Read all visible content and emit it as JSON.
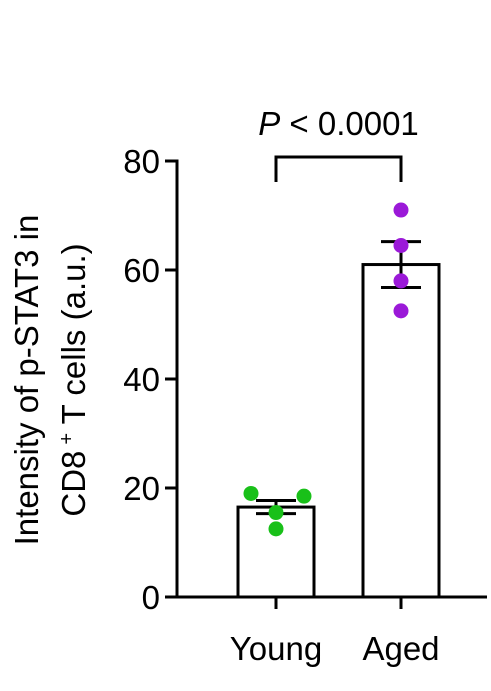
{
  "chart_data": {
    "type": "bar",
    "categories": [
      "Young",
      "Aged"
    ],
    "values": [
      16.5,
      61
    ],
    "sem": [
      1.2,
      4.2
    ],
    "points": [
      [
        19,
        18.5,
        15.5,
        12.5
      ],
      [
        71,
        64.5,
        58,
        52.5
      ]
    ],
    "point_colors": [
      "#19c019",
      "#9b19d8"
    ],
    "ylabel_line1": "Intensity of p-STAT3 in",
    "ylabel_line2_pre": "CD8",
    "ylabel_line2_sup": "+",
    "ylabel_line2_post": " T cells (a.u.)",
    "ylim": [
      0,
      80
    ],
    "yticks": [
      0,
      20,
      40,
      60,
      80
    ],
    "significance": {
      "italic": "P",
      "text": " < 0.0001"
    },
    "grid": false,
    "legend": "none"
  }
}
